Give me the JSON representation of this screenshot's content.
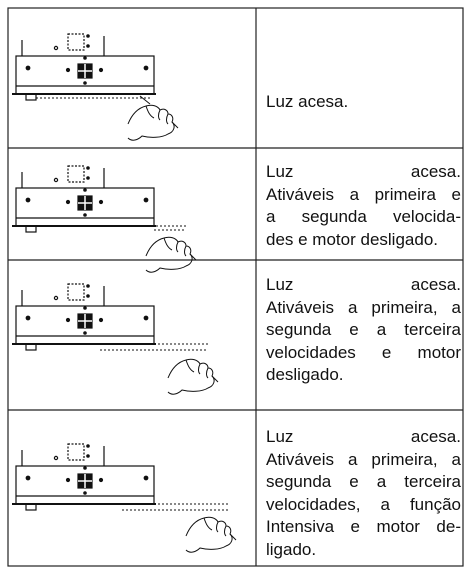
{
  "table": {
    "rows": [
      {
        "lines": [
          "Luz acesa."
        ]
      },
      {
        "lines": [
          "Luz acesa.",
          "Ativáveis a primeira e",
          "a segunda velocida-",
          "des e motor desligado."
        ]
      },
      {
        "lines": [
          "Luz acesa.",
          "Ativáveis a primeira, a",
          "segunda e a terceira",
          "velocidades e motor",
          "desligado."
        ]
      },
      {
        "lines": [
          "Luz acesa.",
          "Ativáveis a primeira, a",
          "segunda e a terceira",
          "velocidades, a função",
          "Intensiva e motor de-",
          "ligado."
        ]
      }
    ]
  }
}
